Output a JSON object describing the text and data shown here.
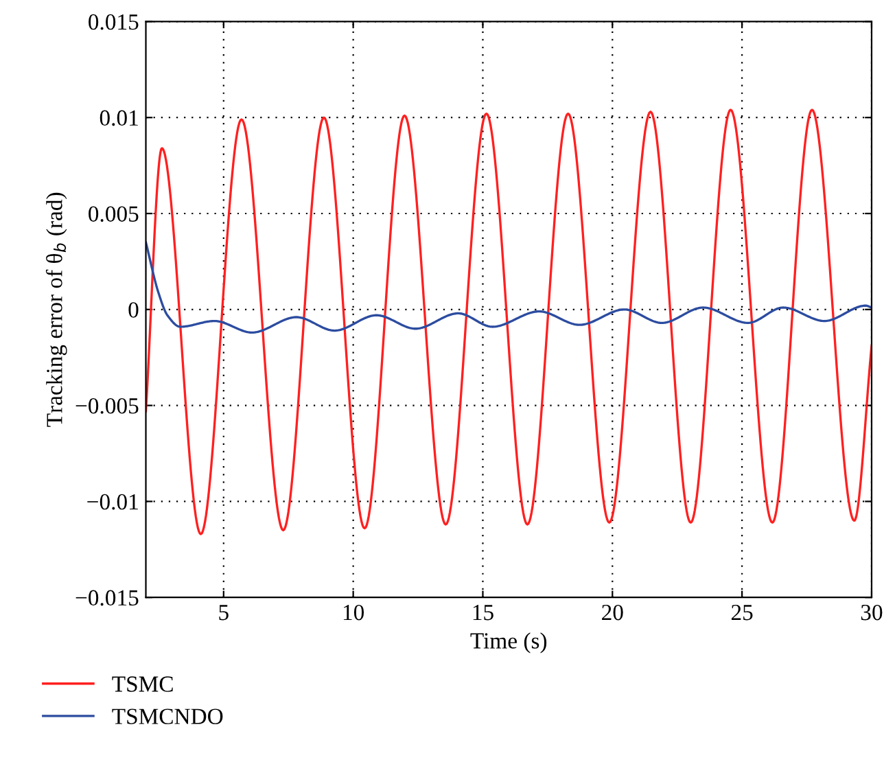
{
  "chart_data": {
    "type": "line",
    "xlabel": "Time (s)",
    "ylabel": "Tracking error of θ$_{b}$ (rad)",
    "xlim": [
      2,
      30
    ],
    "ylim": [
      -0.015,
      0.015
    ],
    "xticks": [
      5,
      10,
      15,
      20,
      25,
      30
    ],
    "yticks": [
      -0.015,
      -0.01,
      -0.005,
      0,
      0.005,
      0.01,
      0.015
    ],
    "grid": true,
    "legend": "bottom left",
    "line_style": "solid",
    "marker": "none",
    "series": [
      {
        "name": "TSMC",
        "color": "#ff2020",
        "x": [
          2,
          2.62,
          4.12,
          5.69,
          7.3,
          8.87,
          10.44,
          11.98,
          13.57,
          15.14,
          16.72,
          18.29,
          19.88,
          21.47,
          23.02,
          24.56,
          26.17,
          27.7,
          29.33,
          30
        ],
        "values": [
          -0.0053,
          0.0084,
          -0.0117,
          0.0099,
          -0.0115,
          0.01,
          -0.0114,
          0.0101,
          -0.0112,
          0.0102,
          -0.0112,
          0.0102,
          -0.0111,
          0.0103,
          -0.0111,
          0.0104,
          -0.0111,
          0.0104,
          -0.011,
          -0.0019
        ]
      },
      {
        "name": "TSMCNDO",
        "color": "#2c4ca0",
        "x": [
          2,
          2.48,
          2.83,
          3.33,
          4.65,
          6.1,
          7.81,
          9.28,
          10.9,
          12.4,
          14.05,
          15.37,
          17.17,
          18.73,
          20.46,
          21.91,
          23.5,
          25.23,
          26.59,
          28.18,
          29.77,
          30
        ],
        "values": [
          0.0035,
          0.0009,
          -0.0003,
          -0.0009,
          -0.0006,
          -0.0012,
          -0.0004,
          -0.0011,
          -0.0003,
          -0.001,
          -0.0002,
          -0.0009,
          -0.0001,
          -0.0008,
          0.0,
          -0.0007,
          0.0001,
          -0.0007,
          0.0001,
          -0.0006,
          0.0002,
          0.0001
        ]
      }
    ]
  }
}
